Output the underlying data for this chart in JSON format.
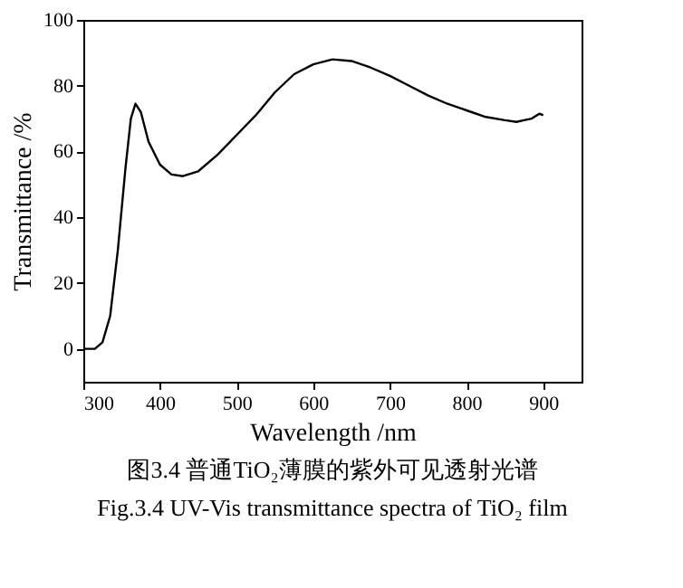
{
  "chart_data": {
    "type": "line",
    "xlabel": "Wavelength /nm",
    "ylabel": "Transmittance /%",
    "annotations": [
      "图3.4  普通TiO₂薄膜的紫外可见透射光谱",
      "Fig.3.4 UV-Vis transmittance spectra of TiO₂ film"
    ],
    "x": [
      300,
      315,
      325,
      335,
      345,
      355,
      362,
      368,
      375,
      385,
      400,
      415,
      430,
      450,
      475,
      500,
      525,
      550,
      575,
      600,
      625,
      650,
      675,
      700,
      725,
      750,
      775,
      800,
      825,
      850,
      865,
      875,
      885,
      895,
      900
    ],
    "series": [
      {
        "color": "#000000",
        "values": [
          0,
          0,
          2,
          10,
          30,
          55,
          70,
          74.5,
          72,
          63,
          56,
          53,
          52.5,
          54,
          59,
          65,
          71,
          78,
          83.5,
          86.5,
          88,
          87.5,
          85.5,
          83,
          80,
          77,
          74.5,
          72.5,
          70.5,
          69.5,
          69,
          69.5,
          70,
          71.5,
          71
        ]
      }
    ],
    "xlim": [
      300,
      950
    ],
    "ylim": [
      -10,
      100
    ],
    "xticks": [
      300,
      400,
      500,
      600,
      700,
      800,
      900
    ],
    "yticks": [
      0,
      20,
      40,
      60,
      80,
      100
    ],
    "grid": false,
    "legend": false,
    "marker": "none",
    "line_style": "solid"
  }
}
